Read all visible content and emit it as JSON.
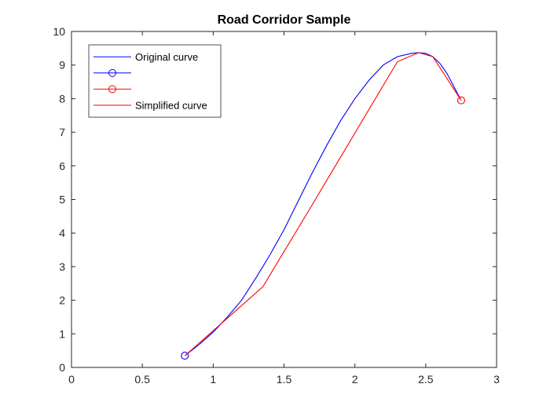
{
  "chart_data": {
    "type": "line",
    "title": "Road Corridor Sample",
    "xlabel": "",
    "ylabel": "",
    "xlim": [
      0,
      3
    ],
    "ylim": [
      0,
      10
    ],
    "xticks": [
      0,
      0.5,
      1,
      1.5,
      2,
      2.5,
      3
    ],
    "xtick_labels": [
      "0",
      "0.5",
      "1",
      "1.5",
      "2",
      "2.5",
      "3"
    ],
    "yticks": [
      0,
      1,
      2,
      3,
      4,
      5,
      6,
      7,
      8,
      9,
      10
    ],
    "ytick_labels": [
      "0",
      "1",
      "2",
      "3",
      "4",
      "5",
      "6",
      "7",
      "8",
      "9",
      "10"
    ],
    "grid": false,
    "legend_position": "top-left",
    "series": [
      {
        "name": "Original curve",
        "kind": "line",
        "color": "#0000ff",
        "x": [
          0.8,
          0.9,
          1.0,
          1.1,
          1.2,
          1.3,
          1.4,
          1.5,
          1.6,
          1.7,
          1.8,
          1.9,
          2.0,
          2.1,
          2.2,
          2.3,
          2.4,
          2.45,
          2.5,
          2.55,
          2.6,
          2.65,
          2.7,
          2.75
        ],
        "y": [
          0.35,
          0.68,
          1.05,
          1.5,
          2.0,
          2.65,
          3.35,
          4.1,
          4.95,
          5.8,
          6.6,
          7.35,
          8.0,
          8.55,
          9.0,
          9.25,
          9.35,
          9.37,
          9.35,
          9.25,
          9.05,
          8.75,
          8.35,
          7.95
        ]
      },
      {
        "name": "",
        "kind": "marker",
        "marker": "circle",
        "color": "#0000ff",
        "x": [
          0.8
        ],
        "y": [
          0.35
        ]
      },
      {
        "name": "",
        "kind": "marker",
        "marker": "circle",
        "color": "#ff0000",
        "x": [
          2.75
        ],
        "y": [
          7.95
        ]
      },
      {
        "name": "Simplified curve",
        "kind": "line",
        "color": "#ff0000",
        "x": [
          0.8,
          1.35,
          1.7,
          2.3,
          2.45,
          2.55,
          2.75
        ],
        "y": [
          0.35,
          2.4,
          4.85,
          9.1,
          9.37,
          9.25,
          7.95
        ]
      }
    ]
  }
}
